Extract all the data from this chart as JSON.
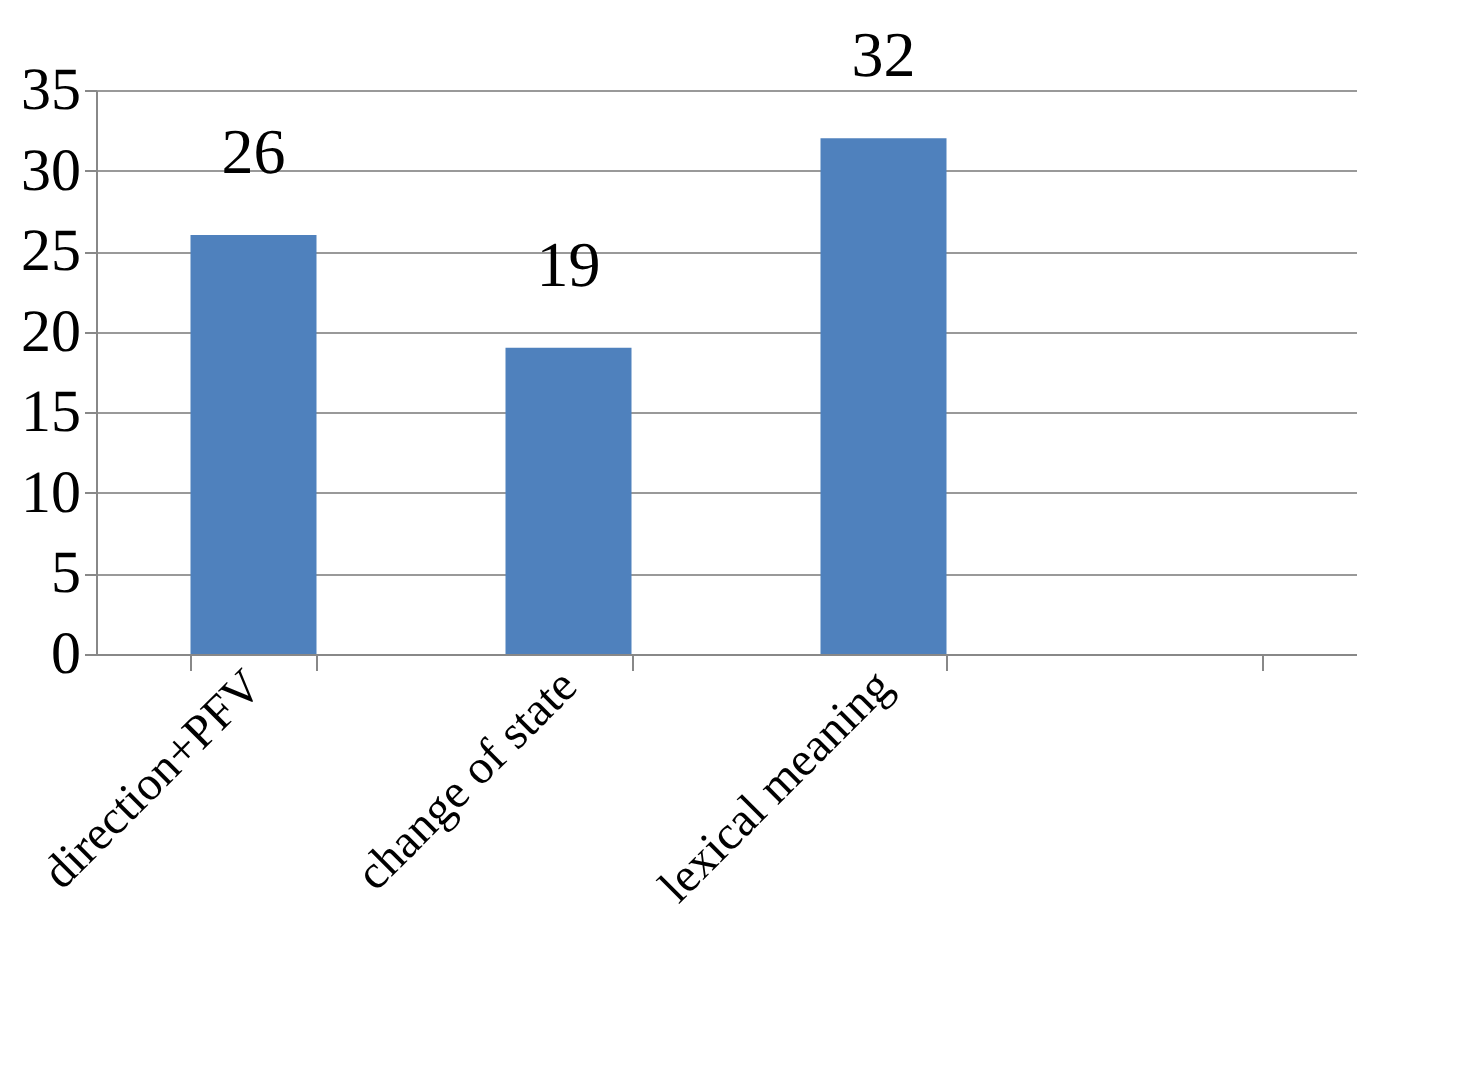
{
  "chart_data": {
    "type": "bar",
    "categories": [
      "direction+PFV",
      "change of state",
      "lexical meaning",
      null
    ],
    "values": [
      26,
      19,
      32,
      null
    ],
    "color": "#4f81bd",
    "ylim": [
      0,
      35
    ],
    "yticks": [
      0,
      5,
      10,
      15,
      20,
      25,
      30,
      35
    ],
    "grid": "y",
    "data_labels": true
  }
}
